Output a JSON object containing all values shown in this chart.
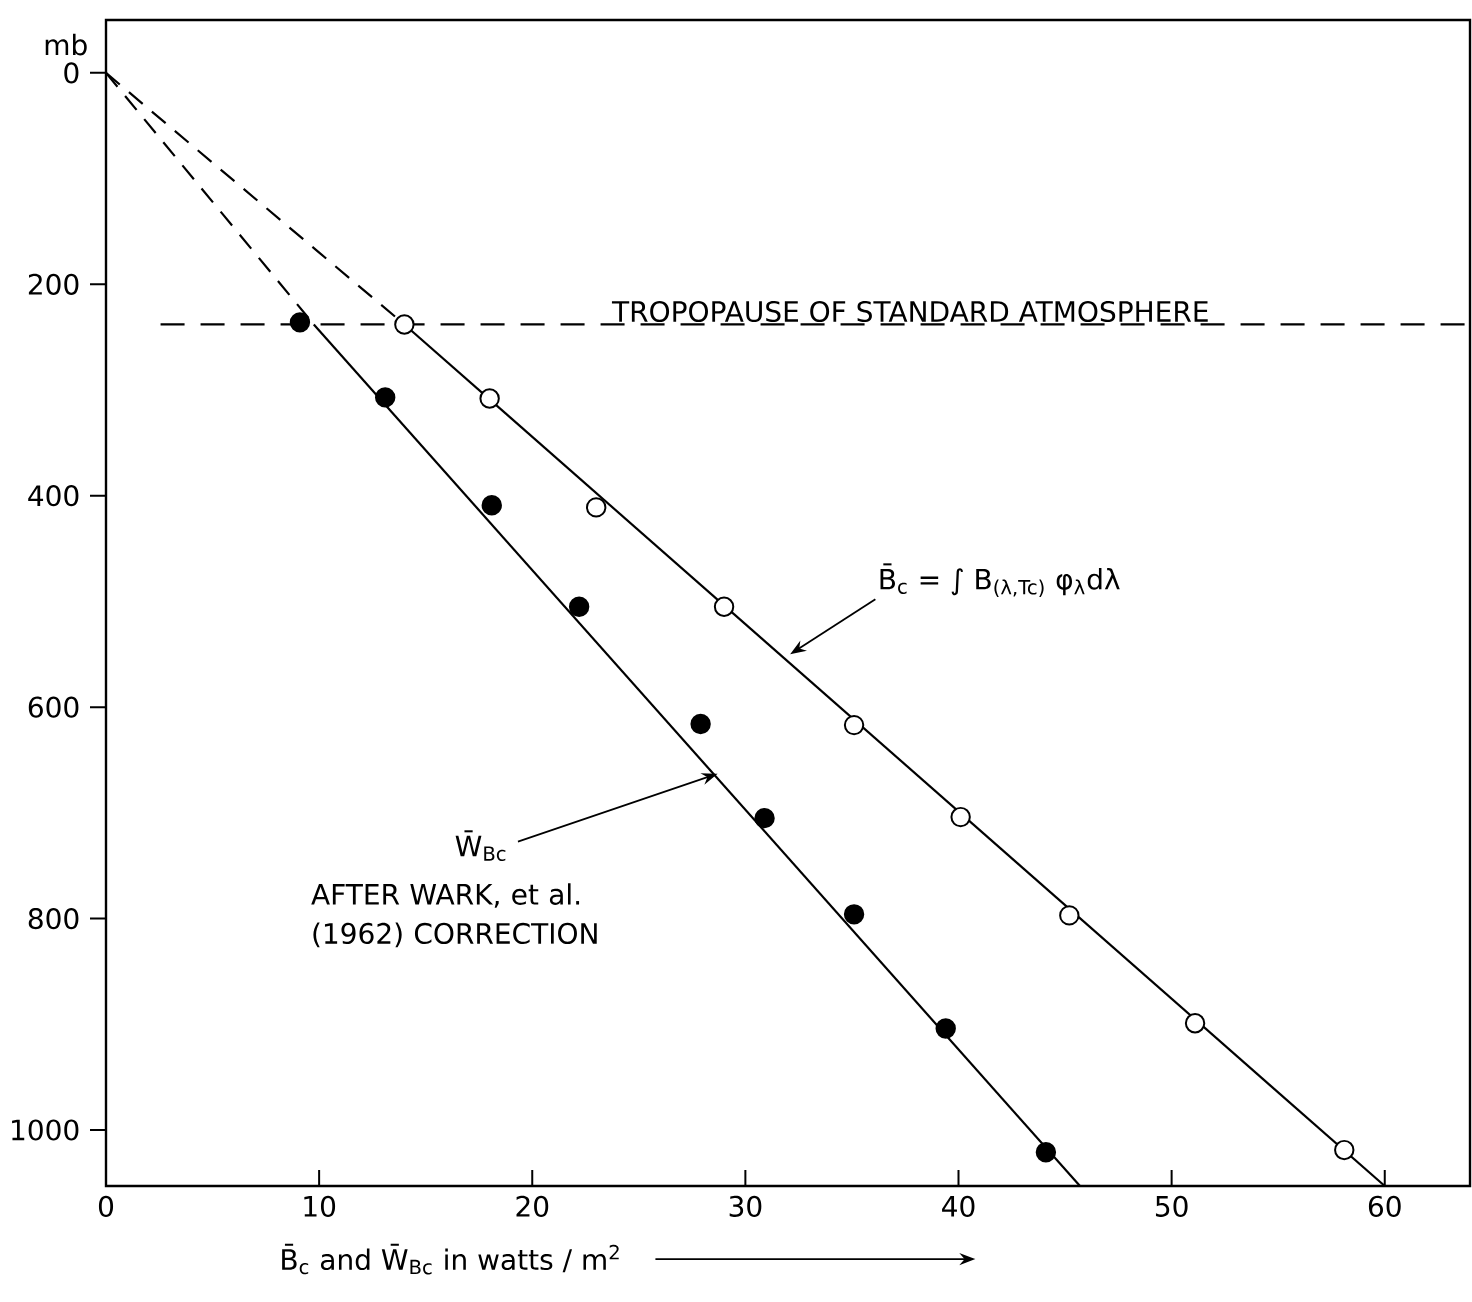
{
  "chart_data": {
    "type": "scatter",
    "xlabel": "B̄$_{c}$ and W̄$_{Bc}$ in watts / m$^{2}$",
    "ylabel": "mb",
    "xlim": [
      0,
      64
    ],
    "ylim": [
      1053,
      -50
    ],
    "xticks": [
      0,
      10,
      20,
      30,
      40,
      50,
      60
    ],
    "yticks": [
      0,
      200,
      400,
      600,
      800,
      1000
    ],
    "series": [
      {
        "color": "#ffffff",
        "marker": "circle",
        "x": [
          14,
          18,
          23,
          29,
          35.1,
          40.1,
          45.2,
          51.1,
          58.1
        ],
        "values": [
          238,
          308,
          411,
          505,
          617,
          704,
          797,
          899,
          1019
        ]
      },
      {
        "color": "#000000",
        "marker": "circle",
        "x": [
          9.1,
          13.1,
          18.1,
          22.2,
          27.9,
          30.9,
          35.1,
          39.4,
          44.1
        ],
        "values": [
          236,
          307,
          409,
          505,
          616,
          705,
          796,
          904,
          1021
        ]
      },
      {
        "type": "line",
        "color": "#000000",
        "line_style": "dashed",
        "marker": "none",
        "x": [
          0,
          14
        ],
        "values": [
          0,
          238
        ]
      },
      {
        "type": "line",
        "color": "#000000",
        "line_style": "solid",
        "marker": "none",
        "x": [
          14,
          60
        ],
        "values": [
          238,
          1053
        ]
      },
      {
        "type": "line",
        "color": "#000000",
        "line_style": "dashed",
        "marker": "none",
        "x": [
          0,
          9.75
        ],
        "values": [
          0,
          238
        ]
      },
      {
        "type": "line",
        "color": "#000000",
        "line_style": "solid",
        "marker": "none",
        "x": [
          9.75,
          45.7
        ],
        "values": [
          238,
          1053
        ]
      }
    ],
    "ref_lines": [
      {
        "axis": "y",
        "value": 238,
        "label": "TROPOPAUSE OF STANDARD ATMOSPHERE",
        "line_style": "dashed",
        "color": "#000000"
      }
    ],
    "annotations": [
      {
        "text": "B̄$_{c}$ = ∫ B$_{(λ,Tc)}$ φ$_{λ}$dλ",
        "x": 32.1,
        "y": 550
      },
      {
        "text": "W̄$_{Bc}$",
        "x": 28.7,
        "y": 663
      },
      "AFTER WARK, et al. (1962) CORRECTION"
    ]
  }
}
